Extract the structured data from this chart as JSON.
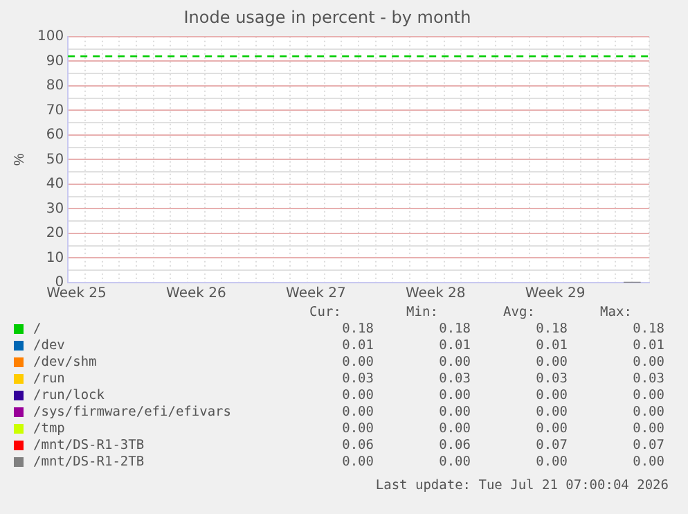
{
  "chart_data": {
    "type": "line",
    "title": "Inode usage in percent - by month",
    "ylabel": "%",
    "categories": [
      "Week 25",
      null,
      null,
      null,
      null,
      null,
      null,
      "Week 26",
      null,
      null,
      null,
      null,
      null,
      null,
      "Week 27",
      null,
      null,
      null,
      null,
      null,
      null,
      "Week 28",
      null,
      null,
      null,
      null,
      null,
      null,
      "Week 29",
      null,
      null,
      null,
      null,
      null
    ],
    "ylim": [
      0,
      100
    ],
    "yticks": [
      0,
      {
        "value": 5,
        "label": null
      },
      10,
      {
        "value": 15,
        "label": null
      },
      20,
      {
        "value": 25,
        "label": null
      },
      30,
      {
        "value": 35,
        "label": null
      },
      40,
      {
        "value": 45,
        "label": null
      },
      50,
      {
        "value": 55,
        "label": null
      },
      60,
      {
        "value": 65,
        "label": null
      },
      70,
      {
        "value": 75,
        "label": null
      },
      80,
      {
        "value": 85,
        "label": null
      },
      90,
      {
        "value": 95,
        "label": null
      },
      100
    ],
    "grid": true,
    "legend": "bottom",
    "marker": "none",
    "line_style": "solid",
    "ref_lines": [
      {
        "axis": "y",
        "value": 92,
        "color": "#00cc00",
        "line_style": "dashed"
      }
    ],
    "series": [
      {
        "name": "/",
        "color": "#00cc00",
        "values": [
          null,
          null,
          null,
          null,
          null,
          null,
          null,
          null,
          null,
          null,
          null,
          null,
          null,
          null,
          null,
          null,
          null,
          null,
          null,
          null,
          null,
          null,
          null,
          null,
          null,
          null,
          null,
          null,
          null,
          null,
          null,
          null,
          null,
          null
        ]
      },
      {
        "name": "/dev",
        "color": "#0066b3",
        "values": [
          null,
          null,
          null,
          null,
          null,
          null,
          null,
          null,
          null,
          null,
          null,
          null,
          null,
          null,
          null,
          null,
          null,
          null,
          null,
          null,
          null,
          null,
          null,
          null,
          null,
          null,
          null,
          null,
          null,
          null,
          null,
          null,
          null,
          null
        ]
      },
      {
        "name": "/dev/shm",
        "color": "#ff8000",
        "values": [
          null,
          null,
          null,
          null,
          null,
          null,
          null,
          null,
          null,
          null,
          null,
          null,
          null,
          null,
          null,
          null,
          null,
          null,
          null,
          null,
          null,
          null,
          null,
          null,
          null,
          null,
          null,
          null,
          null,
          null,
          null,
          null,
          null,
          null
        ]
      },
      {
        "name": "/run",
        "color": "#ffcc00",
        "values": [
          null,
          null,
          null,
          null,
          null,
          null,
          null,
          null,
          null,
          null,
          null,
          null,
          null,
          null,
          null,
          null,
          null,
          null,
          null,
          null,
          null,
          null,
          null,
          null,
          null,
          null,
          null,
          null,
          null,
          null,
          null,
          null,
          null,
          null
        ]
      },
      {
        "name": "/run/lock",
        "color": "#330099",
        "values": [
          null,
          null,
          null,
          null,
          null,
          null,
          null,
          null,
          null,
          null,
          null,
          null,
          null,
          null,
          null,
          null,
          null,
          null,
          null,
          null,
          null,
          null,
          null,
          null,
          null,
          null,
          null,
          null,
          null,
          null,
          null,
          null,
          null,
          null
        ]
      },
      {
        "name": "/sys/firmware/efi/efivars",
        "color": "#990099",
        "values": [
          null,
          null,
          null,
          null,
          null,
          null,
          null,
          null,
          null,
          null,
          null,
          null,
          null,
          null,
          null,
          null,
          null,
          null,
          null,
          null,
          null,
          null,
          null,
          null,
          null,
          null,
          null,
          null,
          null,
          null,
          null,
          null,
          null,
          null
        ]
      },
      {
        "name": "/tmp",
        "color": "#ccff00",
        "values": [
          null,
          null,
          null,
          null,
          null,
          null,
          null,
          null,
          null,
          null,
          null,
          null,
          null,
          null,
          null,
          null,
          null,
          null,
          null,
          null,
          null,
          null,
          null,
          null,
          null,
          null,
          null,
          null,
          null,
          null,
          null,
          null,
          null,
          null
        ]
      },
      {
        "name": "/mnt/DS-R1-3TB",
        "color": "#ff0000",
        "values": [
          null,
          null,
          null,
          null,
          null,
          null,
          null,
          null,
          null,
          null,
          null,
          null,
          null,
          null,
          null,
          null,
          null,
          null,
          null,
          null,
          null,
          null,
          null,
          null,
          null,
          null,
          null,
          null,
          null,
          null,
          null,
          null,
          null,
          null
        ]
      },
      {
        "name": "/mnt/DS-R1-2TB",
        "color": "#808080",
        "values": [
          null,
          null,
          null,
          null,
          null,
          null,
          null,
          null,
          null,
          null,
          null,
          null,
          null,
          null,
          null,
          null,
          null,
          null,
          null,
          null,
          null,
          null,
          null,
          null,
          null,
          null,
          null,
          null,
          null,
          null,
          null,
          null,
          0,
          0
        ]
      }
    ],
    "annotations": [
      "Cur:",
      "Min:",
      "Avg:",
      "Max:",
      "0.18",
      "0.18",
      "0.18",
      "0.18",
      "0.01",
      "0.01",
      "0.01",
      "0.01",
      "0.00",
      "0.00",
      "0.00",
      "0.00",
      "0.03",
      "0.03",
      "0.03",
      "0.03",
      "0.00",
      "0.00",
      "0.00",
      "0.00",
      "0.00",
      "0.00",
      "0.00",
      "0.00",
      "0.00",
      "0.00",
      "0.00",
      "0.00",
      "0.06",
      "0.06",
      "0.07",
      "0.07",
      "0.00",
      "0.00",
      "0.00",
      "0.00",
      "Last update: Tue Jul 21 07:00:04 2026"
    ]
  }
}
